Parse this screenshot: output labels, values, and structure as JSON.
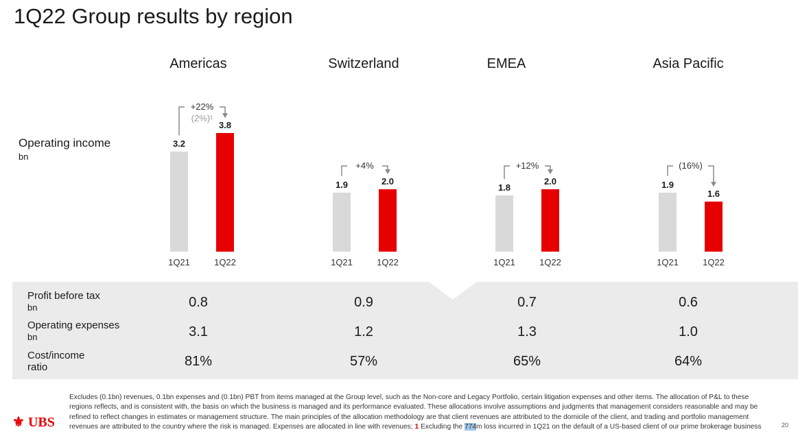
{
  "title": "1Q22 Group results by region",
  "row_labels": {
    "operating_income": "Operating income",
    "oi_unit": "bn",
    "pbt": "Profit before tax",
    "pbt_unit": "bn",
    "opex": "Operating expenses",
    "opex_unit": "bn",
    "ci": "Cost/income",
    "ci_unit": "ratio"
  },
  "chart_data": {
    "type": "bar",
    "title": "Operating income",
    "ylabel": "bn",
    "categories": [
      "1Q21",
      "1Q22"
    ],
    "colors": {
      "1Q21": "#d9d9d9",
      "1Q22": "#e60000"
    },
    "regions": [
      {
        "name": "Americas",
        "values": [
          3.2,
          3.8
        ],
        "value_labels": [
          "3.2",
          "3.8"
        ],
        "change": "+22%",
        "change_sub": "(2%)¹"
      },
      {
        "name": "Switzerland",
        "values": [
          1.9,
          2.0
        ],
        "value_labels": [
          "1.9",
          "2.0"
        ],
        "change": "+4%"
      },
      {
        "name": "EMEA",
        "values": [
          1.8,
          2.0
        ],
        "value_labels": [
          "1.8",
          "2.0"
        ],
        "change": "+12%"
      },
      {
        "name": "Asia Pacific",
        "values": [
          1.9,
          1.6
        ],
        "value_labels": [
          "1.9",
          "1.6"
        ],
        "change": "(16%)"
      }
    ]
  },
  "table": [
    {
      "pbt": "0.8",
      "opex": "3.1",
      "ci": "81%"
    },
    {
      "pbt": "0.9",
      "opex": "1.2",
      "ci": "57%"
    },
    {
      "pbt": "0.7",
      "opex": "1.3",
      "ci": "65%"
    },
    {
      "pbt": "0.6",
      "opex": "1.0",
      "ci": "64%"
    }
  ],
  "footnote": {
    "main": "Excludes (0.1bn) revenues, 0.1bn expenses and (0.1bn) PBT from items managed at the Group level, such as the Non-core and Legacy Portfolio, certain litigation expenses and other items. The allocation of P&L to these regions reflects, and is consistent with, the basis on which the business is managed and its performance evaluated. These allocations involve assumptions and judgments that management considers reasonable and may be refined to reflect changes in estimates or management structure. The main principles of the allocation methodology are that client revenues are attributed to the domicile of the client, and trading and portfolio management revenues are attributed to the country where the risk is managed. Expenses are allocated in line with revenues;",
    "num": "1",
    "pre": " Excluding the ",
    "hl": "774",
    "post": "m loss incurred in 1Q21 on the default of a US-based client of our prime brokerage business"
  },
  "logo": "UBS",
  "page": "20"
}
